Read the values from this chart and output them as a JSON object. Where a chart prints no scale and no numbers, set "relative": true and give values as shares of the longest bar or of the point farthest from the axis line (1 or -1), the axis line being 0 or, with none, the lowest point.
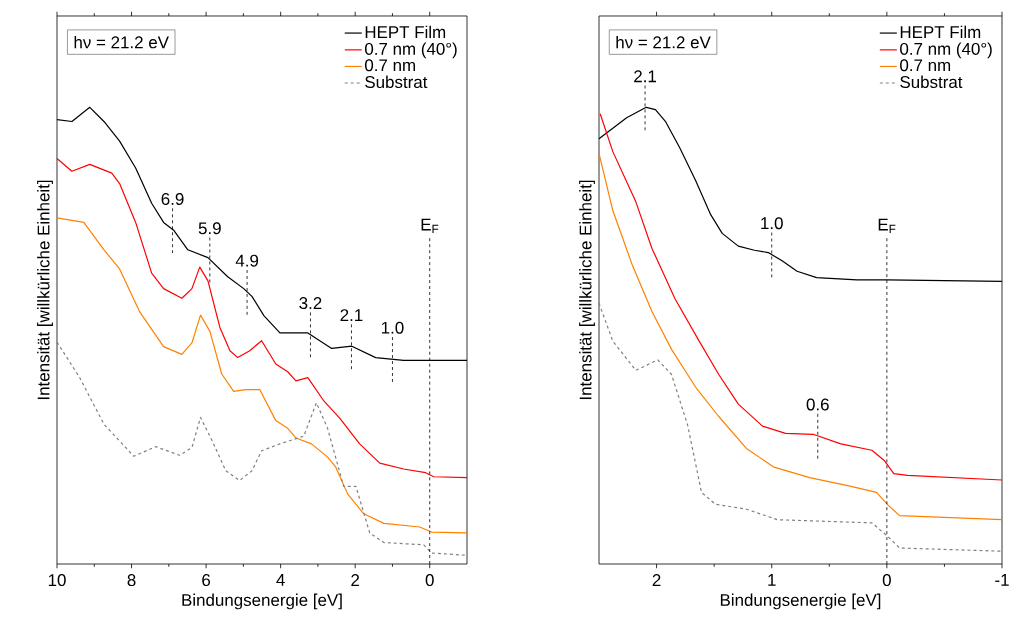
{
  "chart_data": [
    {
      "type": "line",
      "xlabel": "Bindungsenergie [eV]",
      "ylabel": "Intensität [willkürliche Einheit]",
      "relative": true,
      "xlim": [
        10,
        -1
      ],
      "xticks": [
        10,
        8,
        6,
        4,
        2,
        0
      ],
      "legend": "top right",
      "marker": "none",
      "annotations": [
        "hν = 21.2 eV",
        {
          "text": "6.9",
          "x": 6.9,
          "y": 0.731
        },
        {
          "text": "5.9",
          "x": 5.9,
          "y": 0.667
        },
        {
          "text": "4.9",
          "x": 4.9,
          "y": 0.596
        },
        {
          "text": "3.2",
          "x": 3.2,
          "y": 0.503
        },
        {
          "text": "2.1",
          "x": 2.1,
          "y": 0.477
        },
        {
          "text": "1.0",
          "x": 1.0,
          "y": 0.449
        }
      ],
      "ref_lines": [
        {
          "axis": "x",
          "value": 0,
          "label": "E$_{F}$",
          "line_style": "dashed",
          "color": "#000000"
        }
      ],
      "series": [
        {
          "name": "HEPT Film",
          "color": "#000000",
          "line_style": "solid",
          "x": [
            10,
            9.6,
            9.12,
            8.74,
            8.32,
            7.89,
            7.46,
            7.14,
            6.87,
            6.49,
            5.95,
            5.42,
            4.99,
            4.77,
            4.45,
            4.02,
            3.27,
            2.63,
            2.09,
            1.45,
            0.7,
            -1.0
          ],
          "values": [
            0.973,
            0.969,
            1.0,
            0.969,
            0.926,
            0.867,
            0.79,
            0.748,
            0.731,
            0.688,
            0.671,
            0.629,
            0.603,
            0.586,
            0.544,
            0.506,
            0.506,
            0.472,
            0.477,
            0.452,
            0.446,
            0.446
          ]
        },
        {
          "name": "0.7 nm (40°)",
          "color": "#ff0000",
          "line_style": "solid",
          "x": [
            10,
            9.6,
            9.12,
            8.53,
            8.32,
            7.89,
            7.46,
            7.14,
            6.65,
            6.38,
            6.17,
            5.95,
            5.63,
            5.36,
            5.15,
            4.83,
            4.51,
            4.13,
            3.81,
            3.59,
            3.27,
            2.84,
            2.41,
            1.88,
            1.34,
            0.7,
            0.11,
            -0.11,
            -1.0
          ],
          "values": [
            0.888,
            0.86,
            0.875,
            0.856,
            0.833,
            0.748,
            0.637,
            0.603,
            0.582,
            0.603,
            0.65,
            0.62,
            0.518,
            0.467,
            0.452,
            0.467,
            0.489,
            0.438,
            0.421,
            0.401,
            0.408,
            0.357,
            0.319,
            0.263,
            0.221,
            0.208,
            0.2,
            0.191,
            0.189
          ]
        },
        {
          "name": "0.7 nm",
          "color": "#ff8000",
          "line_style": "solid",
          "x": [
            10,
            9.28,
            8.74,
            8.32,
            7.78,
            7.14,
            6.65,
            6.38,
            6.15,
            5.9,
            5.58,
            5.26,
            4.94,
            4.56,
            4.13,
            3.81,
            3.59,
            3.17,
            2.74,
            2.52,
            2.2,
            1.77,
            1.23,
            0.27,
            -0.05,
            -1.0
          ],
          "values": [
            0.758,
            0.748,
            0.688,
            0.646,
            0.552,
            0.476,
            0.459,
            0.484,
            0.545,
            0.51,
            0.416,
            0.378,
            0.382,
            0.382,
            0.314,
            0.297,
            0.276,
            0.263,
            0.234,
            0.212,
            0.153,
            0.11,
            0.089,
            0.081,
            0.07,
            0.068
          ]
        },
        {
          "name": "Substrat",
          "color": "#808080",
          "line_style": "dashed",
          "x": [
            10,
            9.39,
            8.74,
            7.94,
            7.35,
            6.71,
            6.38,
            6.15,
            5.85,
            5.47,
            5.1,
            4.77,
            4.51,
            4.02,
            3.38,
            3.04,
            2.74,
            2.31,
            1.98,
            1.61,
            1.23,
            0.16,
            -0.05,
            -1.0
          ],
          "values": [
            0.486,
            0.408,
            0.306,
            0.236,
            0.257,
            0.238,
            0.255,
            0.321,
            0.272,
            0.204,
            0.183,
            0.204,
            0.248,
            0.263,
            0.28,
            0.353,
            0.297,
            0.17,
            0.17,
            0.068,
            0.047,
            0.042,
            0.024,
            0.019
          ]
        }
      ]
    },
    {
      "type": "line",
      "xlabel": "Bindungsenergie [eV]",
      "ylabel": "Intensität [willkürliche Einheit]",
      "relative": true,
      "xlim": [
        2.5,
        -1
      ],
      "xticks": [
        2,
        1,
        0,
        -1
      ],
      "legend": "top right",
      "marker": "none",
      "annotations": [
        "hν = 21.2 eV",
        {
          "text": "2.1",
          "x": 2.1,
          "y": 1.0
        },
        {
          "text": "1.0",
          "x": 1.0,
          "y": 0.678
        },
        {
          "text": "0.6",
          "x": 0.6,
          "y": 0.281
        }
      ],
      "ref_lines": [
        {
          "axis": "x",
          "value": 0,
          "label": "E$_{F}$",
          "line_style": "dashed",
          "color": "#000000"
        }
      ],
      "series": [
        {
          "name": "HEPT Film",
          "color": "#000000",
          "line_style": "solid",
          "x": [
            2.5,
            2.38,
            2.26,
            2.09,
            2.01,
            1.92,
            1.8,
            1.66,
            1.53,
            1.43,
            1.29,
            1.15,
            1.03,
            0.91,
            0.78,
            0.61,
            0.26,
            0,
            -1.0
          ],
          "values": [
            0.931,
            0.954,
            0.977,
            1.0,
            0.995,
            0.968,
            0.912,
            0.839,
            0.765,
            0.724,
            0.696,
            0.687,
            0.682,
            0.664,
            0.641,
            0.627,
            0.622,
            0.622,
            0.619
          ]
        },
        {
          "name": "0.7 nm (40°)",
          "color": "#ff0000",
          "line_style": "solid",
          "x": [
            2.49,
            2.38,
            2.18,
            2.04,
            1.84,
            1.63,
            1.46,
            1.29,
            1.08,
            0.88,
            0.64,
            0.4,
            0.13,
            0.02,
            -0.06,
            -0.18,
            -1.0
          ],
          "values": [
            0.986,
            0.903,
            0.793,
            0.691,
            0.581,
            0.488,
            0.415,
            0.35,
            0.302,
            0.286,
            0.284,
            0.263,
            0.249,
            0.226,
            0.198,
            0.194,
            0.184
          ]
        },
        {
          "name": "0.7 nm",
          "color": "#ff8000",
          "line_style": "solid",
          "x": [
            2.5,
            2.38,
            2.21,
            2.04,
            1.87,
            1.66,
            1.46,
            1.22,
            0.98,
            0.67,
            0.33,
            0.09,
            -0.01,
            -0.11,
            -1.0
          ],
          "values": [
            0.899,
            0.774,
            0.654,
            0.553,
            0.47,
            0.387,
            0.323,
            0.253,
            0.212,
            0.189,
            0.171,
            0.157,
            0.129,
            0.106,
            0.097
          ]
        },
        {
          "name": "Substrat",
          "color": "#808080",
          "line_style": "dashed",
          "x": [
            2.5,
            2.38,
            2.18,
            1.99,
            1.87,
            1.73,
            1.61,
            1.49,
            1.22,
            0.95,
            0.13,
            -0.01,
            -0.11,
            -1.0
          ],
          "values": [
            0.571,
            0.488,
            0.424,
            0.447,
            0.415,
            0.304,
            0.157,
            0.131,
            0.12,
            0.097,
            0.09,
            0.06,
            0.035,
            0.028
          ]
        }
      ]
    }
  ]
}
